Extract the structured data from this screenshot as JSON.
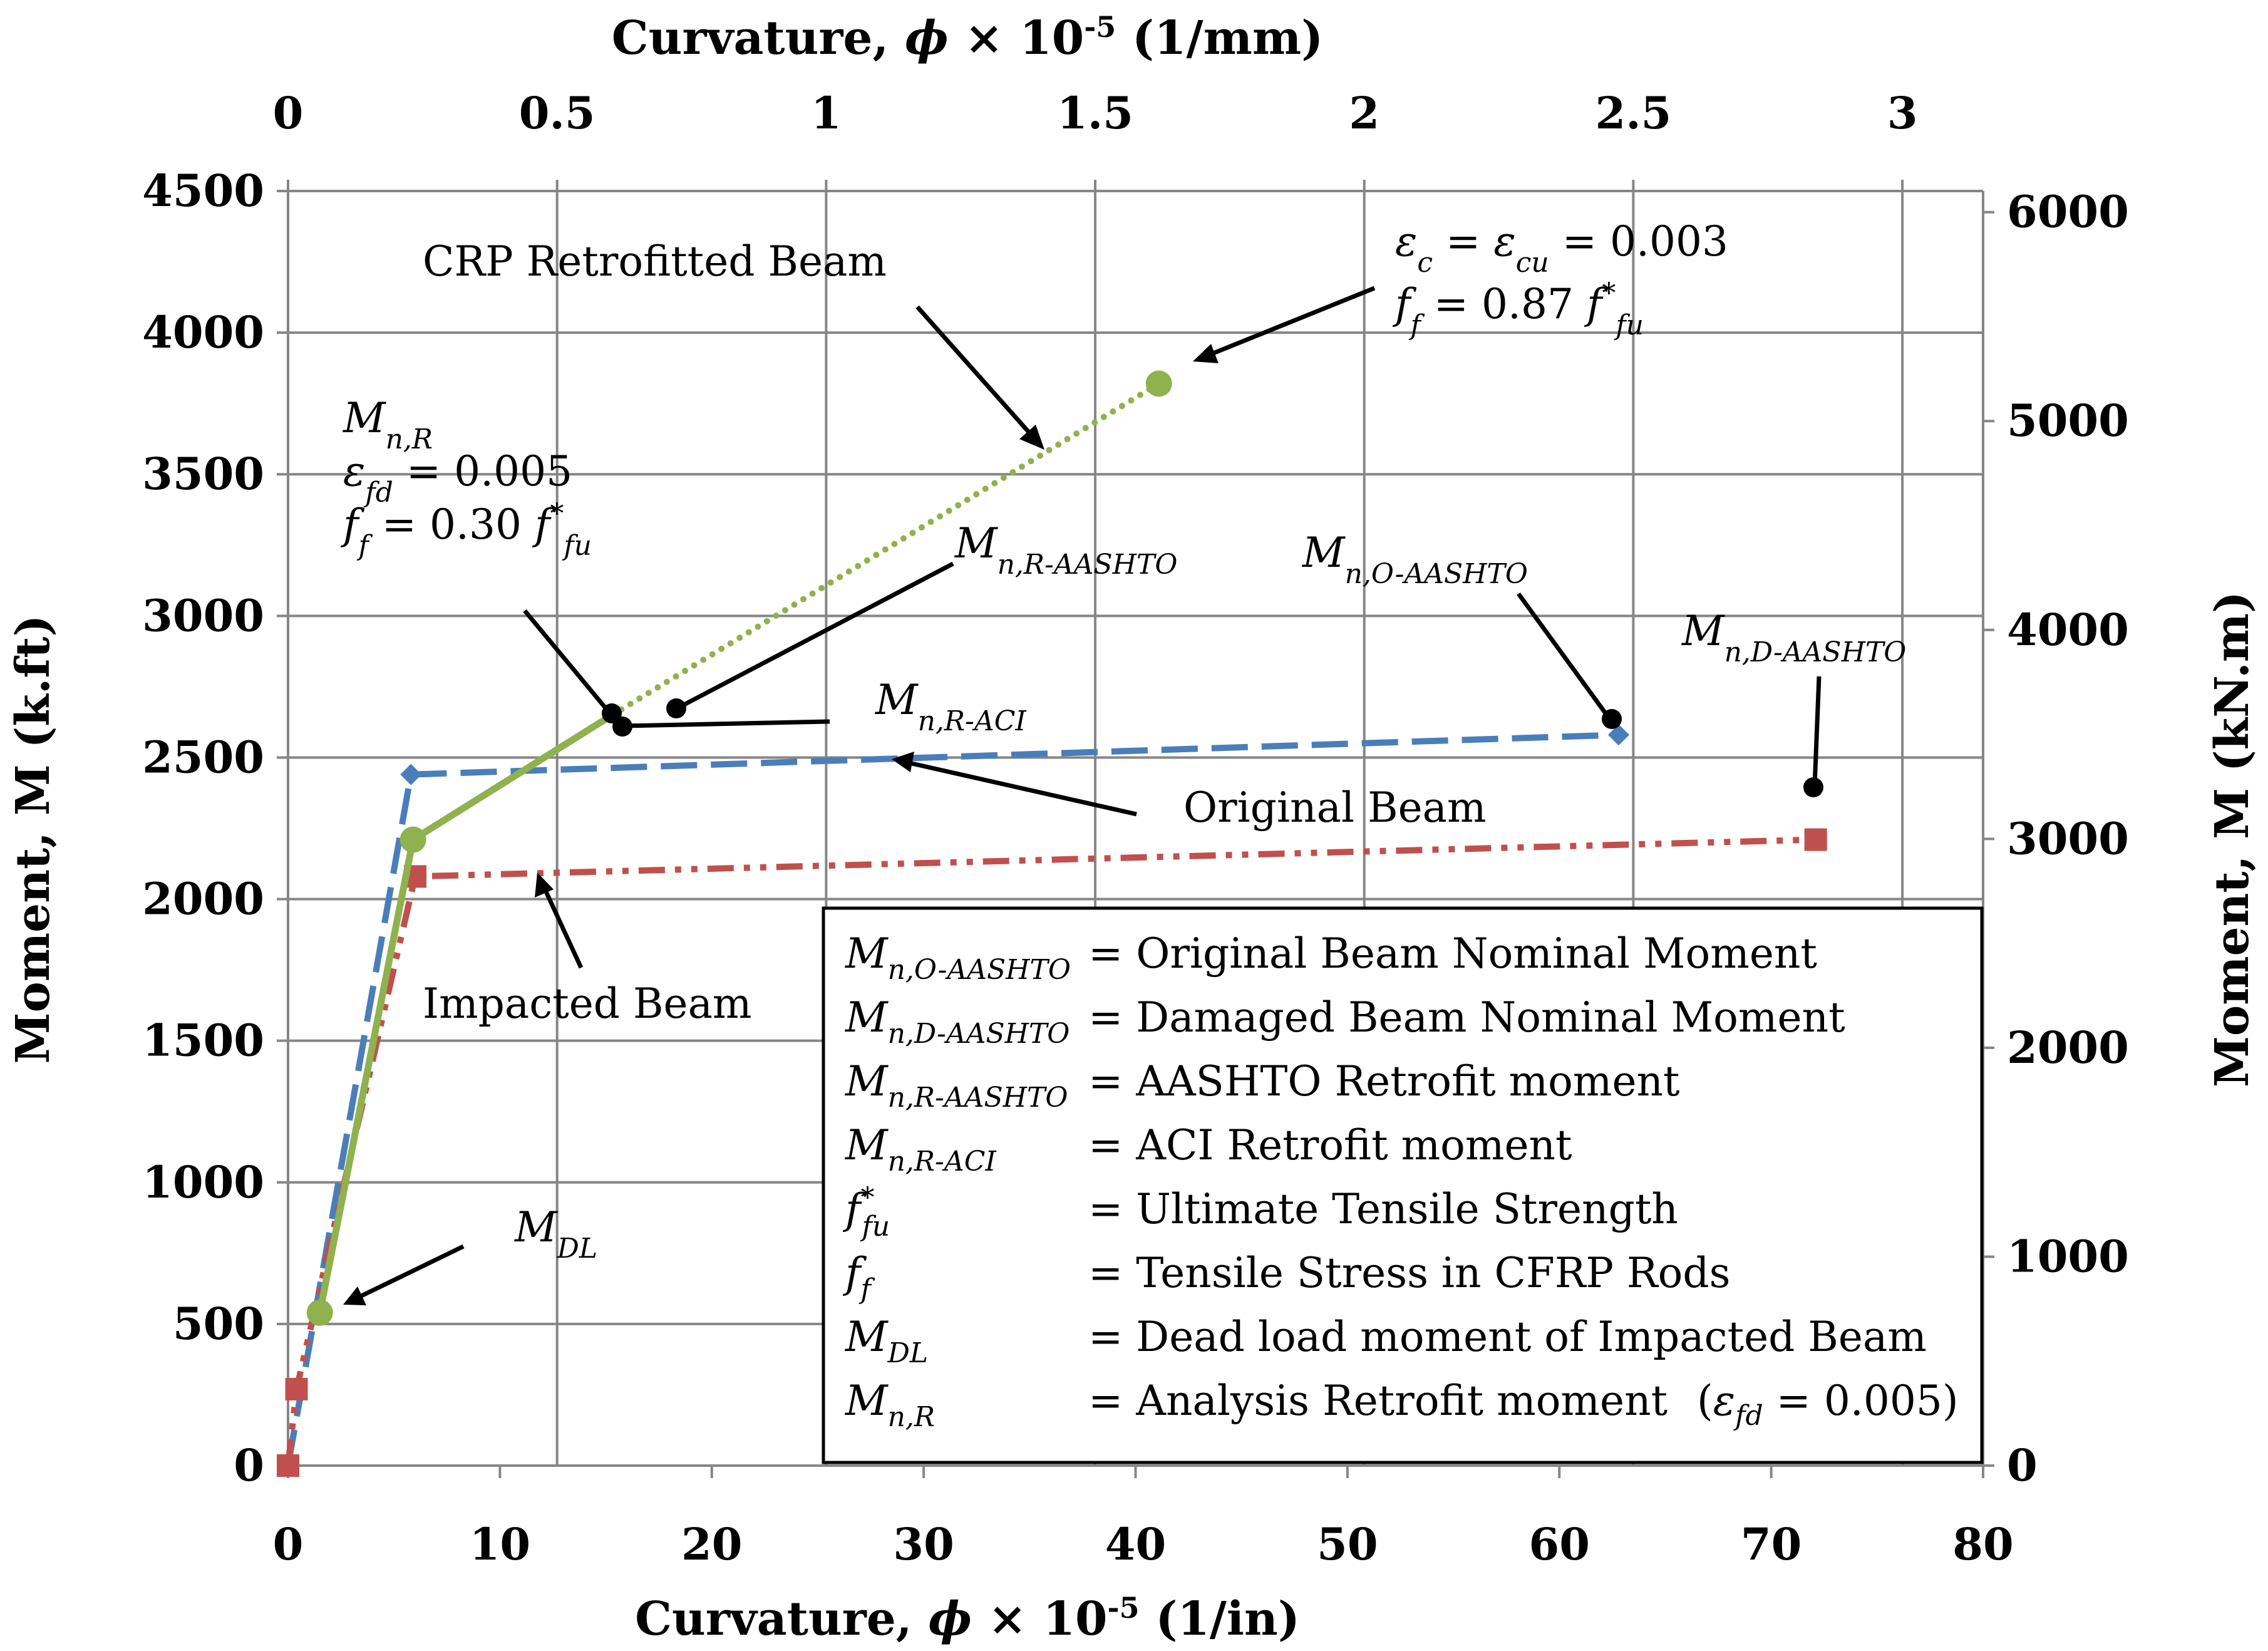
{
  "chart_data": {
    "type": "line",
    "x_bottom": {
      "label": "Curvature, ϕ × 10-5  (1/in)",
      "range": [
        0,
        80
      ],
      "ticks": [
        "0",
        "10",
        "20",
        "30",
        "40",
        "50",
        "60",
        "70",
        "80"
      ]
    },
    "x_top": {
      "label": "Curvature, ϕ × 10-5 (1/mm)",
      "range": [
        0,
        3.15
      ],
      "ticks": [
        "0",
        "0.5",
        "1",
        "1.5",
        "2",
        "2.5",
        "3"
      ]
    },
    "y_left": {
      "label": "Moment, M (k.ft)",
      "range": [
        0,
        4500
      ],
      "ticks": [
        "0",
        "500",
        "1000",
        "1500",
        "2000",
        "2500",
        "3000",
        "3500",
        "4000",
        "4500"
      ]
    },
    "y_right": {
      "label": "Moment, M (kN.m)",
      "range": [
        0,
        6101
      ],
      "ticks": [
        "0",
        "1000",
        "2000",
        "3000",
        "4000",
        "5000",
        "6000"
      ]
    },
    "grid": true,
    "series": [
      {
        "name": "Original Beam",
        "color": "#4a7ebb",
        "style": "long-dash",
        "marker": "diamond",
        "x": [
          0,
          5.8,
          62.8
        ],
        "y": [
          0,
          2440,
          2580
        ]
      },
      {
        "name": "Impacted Beam",
        "color": "#c0504d",
        "style": "dash-dot-dot",
        "marker": "square",
        "x": [
          0,
          0.4,
          6.0,
          72.1
        ],
        "y": [
          0,
          270,
          2080,
          2210
        ]
      },
      {
        "name": "CRP Retrofitted Beam",
        "color": "#8fb24e",
        "style": "solid-then-dotted",
        "marker": "circle",
        "x": [
          1.5,
          5.9,
          15.3,
          41.1
        ],
        "y": [
          540,
          2210,
          2650,
          3820
        ],
        "dotted_from_index": 2
      }
    ],
    "annotations": {
      "crp_label": "CRP Retrofitted Beam",
      "original_label": "Original Beam",
      "impacted_label": "Impacted Beam",
      "ultimate_line1_eps": "ε",
      "ultimate_line1_rest": " = 0.003",
      "ultimate_line2_value": "0.87",
      "mnr": "M",
      "mnr_eps_value": " = 0.005",
      "mnr_ff_value": "0.30",
      "mnr_aashto": "M",
      "mnr_aci": "M",
      "mno_aashto": "M",
      "mnd_aashto": "M",
      "mdl": "M"
    },
    "legend": {
      "items": [
        {
          "symbol": "M",
          "sub": "n,O-AASHTO",
          "desc": "= Original Beam Nominal Moment"
        },
        {
          "symbol": "M",
          "sub": "n,D-AASHTO",
          "desc": "= Damaged Beam Nominal Moment"
        },
        {
          "symbol": "M",
          "sub": "n,R-AASHTO",
          "desc": "= AASHTO Retrofit moment"
        },
        {
          "symbol": "M",
          "sub": "n,R-ACI",
          "desc": "= ACI Retrofit moment"
        },
        {
          "symbol": "f",
          "sub": "fu",
          "sup": "*",
          "desc": "= Ultimate Tensile Strength"
        },
        {
          "symbol": "f",
          "sub": "f",
          "desc": "= Tensile Stress in CFRP Rods"
        },
        {
          "symbol": "M",
          "sub": "DL",
          "desc": "= Dead load moment of Impacted Beam"
        },
        {
          "symbol": "M",
          "sub": "n,R",
          "desc": "= Analysis Retrofit moment",
          "extra": "(εfd = 0.005)"
        }
      ]
    }
  }
}
